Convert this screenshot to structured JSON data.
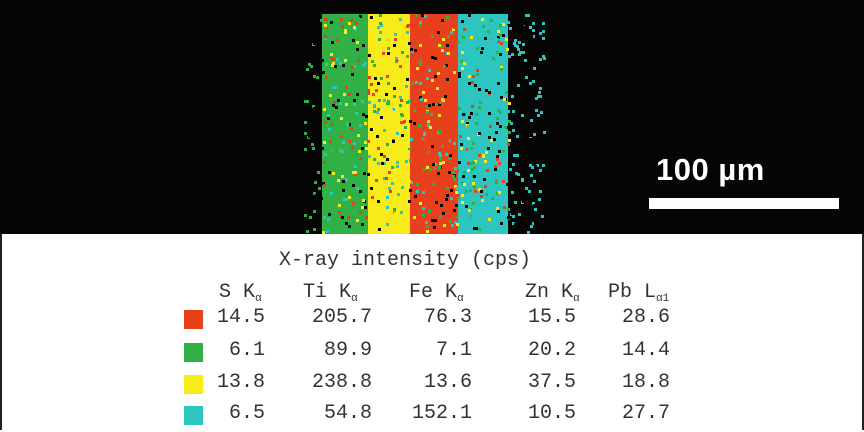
{
  "scale": {
    "label": "100 µm"
  },
  "table": {
    "caption": "X-ray intensity (cps)",
    "columns": [
      {
        "element": "S",
        "line": "α"
      },
      {
        "element": "Ti",
        "line": "α"
      },
      {
        "element": "Fe",
        "line": "α"
      },
      {
        "element": "Zn",
        "line": "α"
      },
      {
        "element": "Pb",
        "line": "α1",
        "family": "L"
      }
    ],
    "rows": [
      {
        "color": "#e8401c",
        "values": [
          "14.5",
          "205.7",
          "76.3",
          "15.5",
          "28.6"
        ]
      },
      {
        "color": "#31b045",
        "values": [
          "6.1",
          "89.9",
          "7.1",
          "20.2",
          "14.4"
        ]
      },
      {
        "color": "#f7ec1a",
        "values": [
          "13.8",
          "238.8",
          "13.6",
          "37.5",
          "18.8"
        ]
      },
      {
        "color": "#2dc5c0",
        "values": [
          "6.5",
          "54.8",
          "152.1",
          "10.5",
          "27.7"
        ]
      }
    ]
  },
  "map_bands": [
    "green",
    "yellow",
    "red",
    "cyan"
  ]
}
